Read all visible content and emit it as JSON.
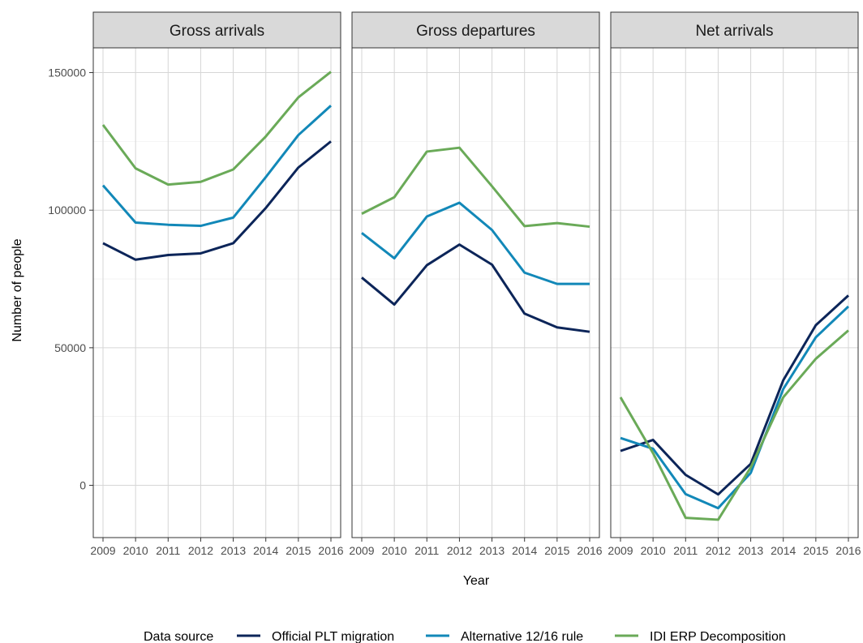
{
  "chart_data": {
    "type": "line",
    "facets": [
      "Gross arrivals",
      "Gross departures",
      "Net arrivals"
    ],
    "xlabel": "Year",
    "ylabel": "Number of people",
    "x": [
      2009,
      2010,
      2011,
      2012,
      2013,
      2014,
      2015,
      2016
    ],
    "ylim": [
      -19000,
      159000
    ],
    "yticks": [
      0,
      50000,
      100000,
      150000
    ],
    "ytick_labels": [
      "0",
      "50000",
      "100000",
      "150000"
    ],
    "legend_title": "Data source",
    "legend_position": "bottom",
    "grid": true,
    "series": [
      {
        "name": "Official PLT migration",
        "color": "#0c2559",
        "values": {
          "Gross arrivals": [
            88000,
            82000,
            83700,
            84300,
            88000,
            100800,
            115500,
            125000
          ],
          "Gross departures": [
            75500,
            65700,
            80000,
            87500,
            80200,
            62400,
            57400,
            55800
          ],
          "Net arrivals": [
            12500,
            16500,
            3800,
            -3300,
            7800,
            38200,
            58200,
            69000
          ]
        }
      },
      {
        "name": "Alternative 12/16 rule",
        "color": "#1288b8",
        "values": {
          "Gross arrivals": [
            109000,
            95500,
            94700,
            94300,
            97300,
            112000,
            127300,
            138000
          ],
          "Gross departures": [
            91700,
            82500,
            97700,
            102700,
            92800,
            77300,
            73200,
            73200
          ],
          "Net arrivals": [
            17200,
            13300,
            -3200,
            -8300,
            4500,
            35000,
            53800,
            65000
          ]
        }
      },
      {
        "name": "IDI ERP Decomposition",
        "color": "#6aaa58",
        "values": {
          "Gross arrivals": [
            131000,
            115200,
            109300,
            110300,
            114800,
            126800,
            141000,
            150300
          ],
          "Gross departures": [
            98700,
            104700,
            121300,
            122700,
            108700,
            94200,
            95300,
            94000
          ],
          "Net arrivals": [
            32000,
            11700,
            -11800,
            -12500,
            6500,
            32000,
            46000,
            56300
          ]
        }
      }
    ]
  }
}
